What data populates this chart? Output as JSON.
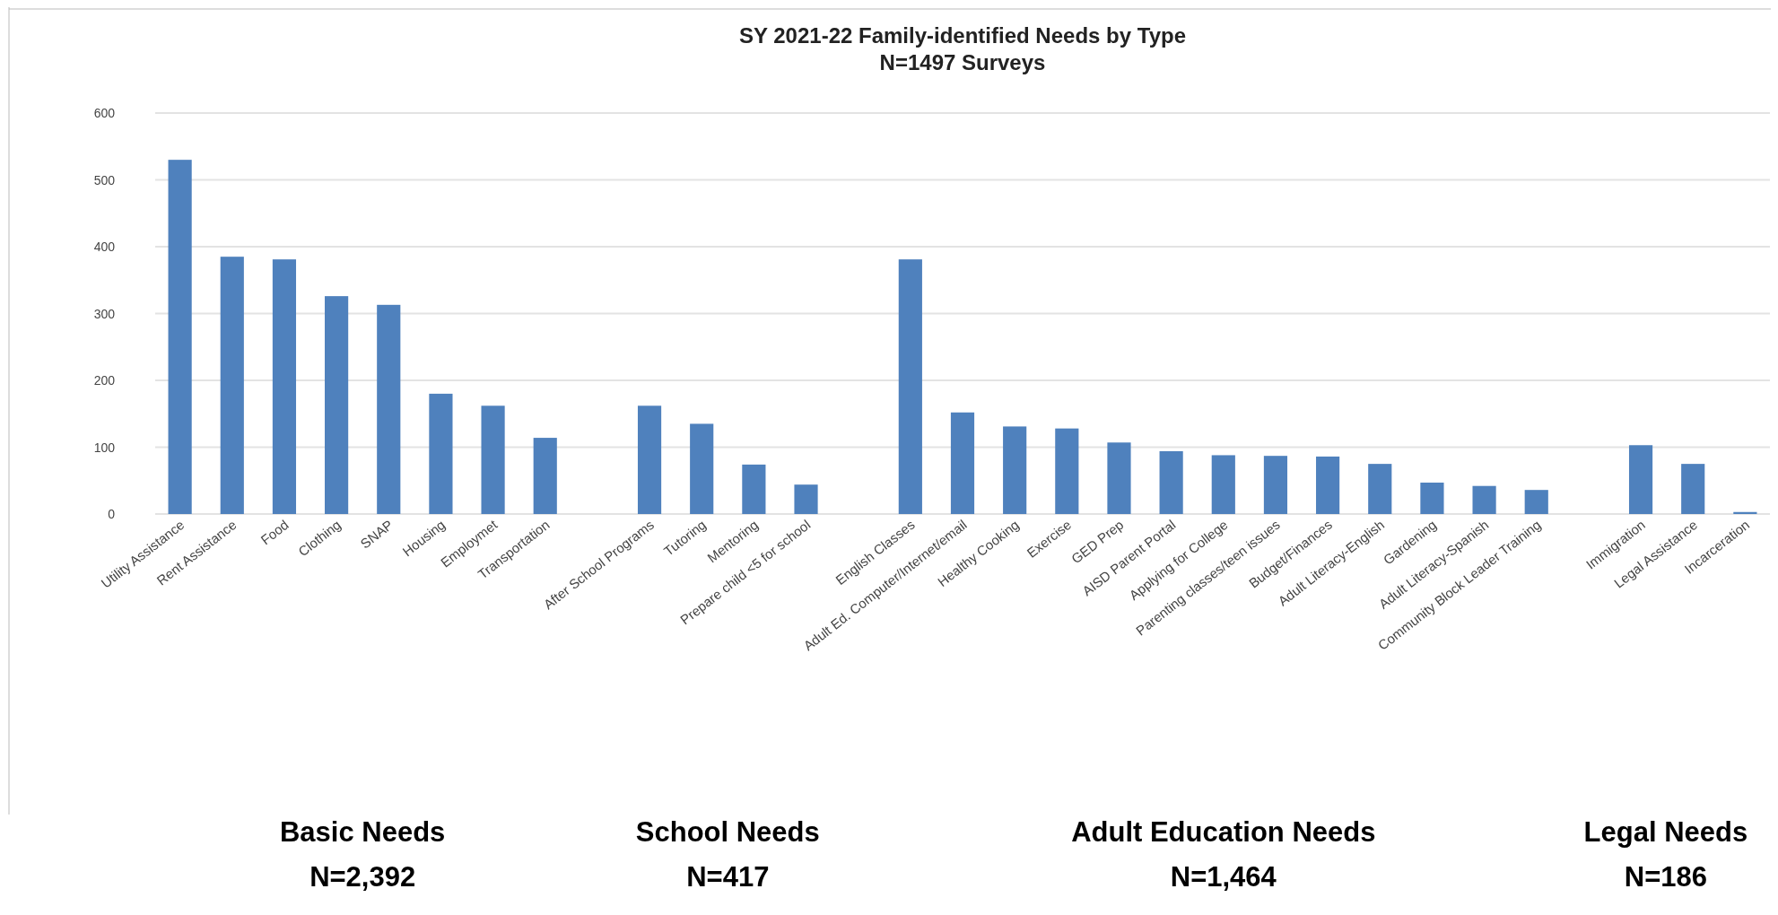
{
  "chart_data": {
    "type": "bar",
    "title": "SY 2021-22 Family-identified Needs by Type",
    "subtitle": "N=1497 Surveys",
    "categories": [
      "Utility Assistance",
      "Rent Assistance",
      "Food",
      "Clothing",
      "SNAP",
      "Housing",
      "Employmet",
      "Transportation",
      null,
      "After School Programs",
      "Tutoring",
      "Mentoring",
      "Prepare child <5 for school",
      null,
      "English Classes",
      "Adult Ed. Computer/Internet/email",
      "Healthy Cooking",
      "Exercise",
      "GED Prep",
      "AISD Parent Portal",
      "Applying for College",
      "Parenting classes/teen issues",
      "Budget/Finances",
      "Adult Literacy-English",
      "Gardening",
      "Adult Literacy-Spanish",
      "Community Block Leader Training",
      null,
      "Immigration",
      "Legal Assistance",
      "Incarceration"
    ],
    "values": [
      530,
      385,
      381,
      326,
      313,
      180,
      162,
      114,
      null,
      162,
      135,
      74,
      44,
      null,
      381,
      152,
      131,
      128,
      107,
      94,
      88,
      87,
      86,
      75,
      47,
      42,
      36,
      null,
      103,
      75,
      3
    ],
    "color": "#4f81bd",
    "ylim": [
      0,
      600
    ],
    "yticks": [
      0,
      100,
      200,
      300,
      400,
      500,
      600
    ],
    "grid": "y",
    "annotations": [
      "Basic Needs\nN=2,392",
      "School Needs\nN=417",
      "Adult Education Needs\nN=1,464",
      "Legal Needs\nN=186"
    ]
  }
}
